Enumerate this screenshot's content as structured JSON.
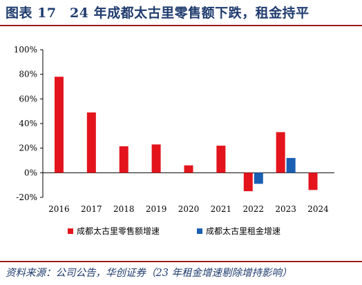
{
  "figure": {
    "title": "图表 17　24 年成都太古里零售额下跌，租金持平",
    "source": "资料来源：公司公告，华创证券（23 年租金增速剔除增持影响）"
  },
  "colors": {
    "retail": "#e3141c",
    "rent": "#1b5fb3",
    "frame": "#9a1b1b",
    "title": "#1f3b6e"
  },
  "chart_data": {
    "type": "bar",
    "title": "",
    "xlabel": "",
    "ylabel": "",
    "categories": [
      "2016",
      "2017",
      "2018",
      "2019",
      "2020",
      "2021",
      "2022",
      "2023",
      "2024"
    ],
    "ylim": [
      -20,
      100
    ],
    "yticks": [
      -20,
      0,
      20,
      40,
      60,
      80,
      100
    ],
    "ytick_labels": [
      "-20%",
      "0%",
      "20%",
      "40%",
      "60%",
      "80%",
      "100%"
    ],
    "unit": "%",
    "grid": false,
    "legend_position": "bottom",
    "series": [
      {
        "name": "成都太古里零售额增速",
        "color": "#e3141c",
        "values": [
          78,
          49,
          21.5,
          23,
          6,
          22,
          -15,
          33,
          -14
        ]
      },
      {
        "name": "成都太古里租金增速",
        "color": "#1b5fb3",
        "values": [
          null,
          null,
          null,
          null,
          null,
          null,
          -9,
          12,
          0
        ]
      }
    ]
  }
}
